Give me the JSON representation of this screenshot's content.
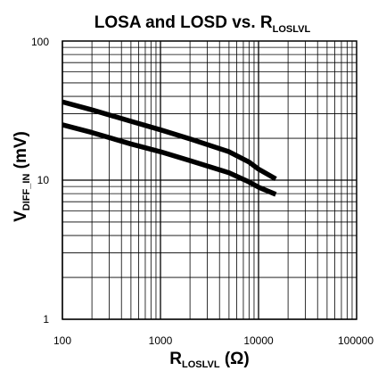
{
  "chart_data": {
    "type": "line",
    "title": {
      "main": "LOSA and LOSD vs. R",
      "sub": "LOSLVL"
    },
    "xlabel": {
      "main": "R",
      "sub": "LOSLVL",
      "unit": " (Ω)"
    },
    "ylabel": {
      "main": "V",
      "sub": "DIFF_IN",
      "unit": " (mV)"
    },
    "x_scale": "log",
    "y_scale": "log",
    "xlim": [
      100,
      100000
    ],
    "ylim": [
      1,
      100
    ],
    "x_tick_labels": [
      "100",
      "1000",
      "10000",
      "100000"
    ],
    "y_tick_labels": [
      "1",
      "10",
      "100"
    ],
    "grid": true,
    "legend": "none",
    "line_color": "#000000",
    "series": [
      {
        "x": [
          100,
          200,
          500,
          1000,
          2000,
          5000,
          8000,
          10000,
          15000
        ],
        "y": [
          36.5,
          32,
          26.5,
          23,
          19.8,
          16,
          13.5,
          12,
          10.2
        ]
      },
      {
        "x": [
          100,
          200,
          500,
          1000,
          2000,
          5000,
          8000,
          10000,
          15000
        ],
        "y": [
          25,
          22,
          18.2,
          16,
          13.8,
          11.3,
          9.7,
          8.9,
          7.9
        ]
      }
    ]
  }
}
